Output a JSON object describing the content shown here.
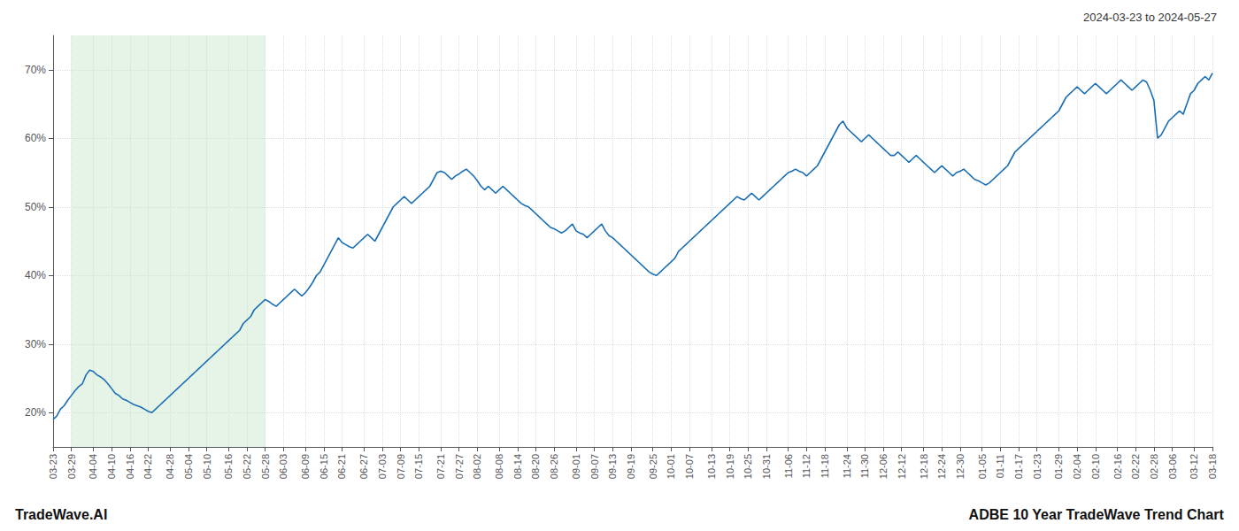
{
  "chart_data": {
    "type": "line",
    "title": "ADBE 10 Year TradeWave Trend Chart",
    "subtitle": "2024-03-23 to 2024-05-27",
    "annotations": [
      "TradeWave.AI"
    ],
    "color": "#1a6eb5",
    "grid": true,
    "shaded_range": {
      "start": "03-29",
      "end": "05-28",
      "color": "#c8e6c9"
    },
    "ylim": [
      15,
      75
    ],
    "yticks": [
      {
        "value": 20,
        "label": "20%"
      },
      {
        "value": 30,
        "label": "30%"
      },
      {
        "value": 40,
        "label": "40%"
      },
      {
        "value": 50,
        "label": "50%"
      },
      {
        "value": 60,
        "label": "60%"
      },
      {
        "value": 70,
        "label": "70%"
      }
    ],
    "categories": [
      "03-23",
      null,
      null,
      null,
      null,
      "03-29",
      null,
      null,
      null,
      null,
      null,
      "04-04",
      null,
      null,
      null,
      null,
      "04-10",
      null,
      null,
      null,
      null,
      "04-16",
      null,
      null,
      null,
      null,
      "04-22",
      null,
      null,
      null,
      null,
      null,
      "04-28",
      null,
      null,
      null,
      null,
      "05-04",
      null,
      null,
      null,
      null,
      "05-10",
      null,
      null,
      null,
      null,
      null,
      "05-16",
      null,
      null,
      null,
      null,
      "05-22",
      null,
      null,
      null,
      null,
      "05-28",
      null,
      null,
      null,
      null,
      "06-03",
      null,
      null,
      null,
      null,
      null,
      "06-09",
      null,
      null,
      null,
      null,
      "06-15",
      null,
      null,
      null,
      null,
      "06-21",
      null,
      null,
      null,
      null,
      null,
      "06-27",
      null,
      null,
      null,
      null,
      "07-03",
      null,
      null,
      null,
      null,
      "07-09",
      null,
      null,
      null,
      null,
      "07-15",
      null,
      null,
      null,
      null,
      null,
      "07-21",
      null,
      null,
      null,
      null,
      "07-27",
      null,
      null,
      null,
      null,
      "08-02",
      null,
      null,
      null,
      null,
      null,
      "08-08",
      null,
      null,
      null,
      null,
      "08-14",
      null,
      null,
      null,
      null,
      "08-20",
      null,
      null,
      null,
      null,
      "08-26",
      null,
      null,
      null,
      null,
      null,
      "09-01",
      null,
      null,
      null,
      null,
      "09-07",
      null,
      null,
      null,
      null,
      "09-13",
      null,
      null,
      null,
      null,
      "09-19",
      null,
      null,
      null,
      null,
      null,
      "09-25",
      null,
      null,
      null,
      null,
      "10-01",
      null,
      null,
      null,
      null,
      "10-07",
      null,
      null,
      null,
      null,
      null,
      "10-13",
      null,
      null,
      null,
      null,
      "10-19",
      null,
      null,
      null,
      null,
      "10-25",
      null,
      null,
      null,
      null,
      "10-31",
      null,
      null,
      null,
      null,
      null,
      "11-06",
      null,
      null,
      null,
      null,
      "11-12",
      null,
      null,
      null,
      null,
      "11-18",
      null,
      null,
      null,
      null,
      null,
      "11-24",
      null,
      null,
      null,
      null,
      "11-30",
      null,
      null,
      null,
      null,
      "12-06",
      null,
      null,
      null,
      null,
      "12-12",
      null,
      null,
      null,
      null,
      null,
      "12-18",
      null,
      null,
      null,
      null,
      "12-24",
      null,
      null,
      null,
      null,
      "12-30",
      null,
      null,
      null,
      null,
      null,
      "01-05",
      null,
      null,
      null,
      null,
      "01-11",
      null,
      null,
      null,
      null,
      "01-17",
      null,
      null,
      null,
      null,
      "01-23",
      null,
      null,
      null,
      null,
      null,
      "01-29",
      null,
      null,
      null,
      null,
      "02-04",
      null,
      null,
      null,
      null,
      "02-10",
      null,
      null,
      null,
      null,
      null,
      "02-16",
      null,
      null,
      null,
      null,
      "02-22",
      null,
      null,
      null,
      null,
      "02-28",
      null,
      null,
      null,
      null,
      "03-06",
      null,
      null,
      null,
      null,
      null,
      "03-12",
      null,
      null,
      null,
      null,
      "03-18"
    ],
    "values": [
      19.0,
      19.5,
      20.5,
      21.0,
      21.8,
      22.5,
      23.2,
      23.8,
      24.2,
      25.5,
      26.2,
      26.0,
      25.5,
      25.2,
      24.8,
      24.2,
      23.5,
      22.8,
      22.5,
      22.0,
      21.8,
      21.5,
      21.2,
      21.0,
      20.8,
      20.5,
      20.2,
      20.0,
      20.5,
      21.0,
      21.5,
      22.0,
      22.5,
      23.0,
      23.5,
      24.0,
      24.5,
      25.0,
      25.5,
      26.0,
      26.5,
      27.0,
      27.5,
      28.0,
      28.5,
      29.0,
      29.5,
      30.0,
      30.5,
      31.0,
      31.5,
      32.0,
      33.0,
      33.5,
      34.0,
      35.0,
      35.5,
      36.0,
      36.5,
      36.2,
      35.8,
      35.5,
      36.0,
      36.5,
      37.0,
      37.5,
      38.0,
      37.5,
      37.0,
      37.5,
      38.2,
      39.0,
      40.0,
      40.5,
      41.5,
      42.5,
      43.5,
      44.5,
      45.5,
      44.8,
      44.5,
      44.2,
      44.0,
      44.5,
      45.0,
      45.5,
      46.0,
      45.5,
      45.0,
      46.0,
      47.0,
      48.0,
      49.0,
      50.0,
      50.5,
      51.0,
      51.5,
      51.0,
      50.5,
      51.0,
      51.5,
      52.0,
      52.5,
      53.0,
      54.0,
      55.0,
      55.2,
      55.0,
      54.5,
      54.0,
      54.5,
      54.8,
      55.2,
      55.5,
      55.0,
      54.5,
      53.8,
      53.0,
      52.5,
      53.0,
      52.5,
      52.0,
      52.5,
      53.0,
      52.5,
      52.0,
      51.5,
      51.0,
      50.5,
      50.2,
      50.0,
      49.5,
      49.0,
      48.5,
      48.0,
      47.5,
      47.0,
      46.8,
      46.5,
      46.2,
      46.5,
      47.0,
      47.5,
      46.5,
      46.2,
      46.0,
      45.5,
      46.0,
      46.5,
      47.0,
      47.5,
      46.5,
      45.8,
      45.5,
      45.0,
      44.5,
      44.0,
      43.5,
      43.0,
      42.5,
      42.0,
      41.5,
      41.0,
      40.5,
      40.2,
      40.0,
      40.5,
      41.0,
      41.5,
      42.0,
      42.5,
      43.5,
      44.0,
      44.5,
      45.0,
      45.5,
      46.0,
      46.5,
      47.0,
      47.5,
      48.0,
      48.5,
      49.0,
      49.5,
      50.0,
      50.5,
      51.0,
      51.5,
      51.2,
      51.0,
      51.5,
      52.0,
      51.5,
      51.0,
      51.5,
      52.0,
      52.5,
      53.0,
      53.5,
      54.0,
      54.5,
      55.0,
      55.2,
      55.5,
      55.2,
      55.0,
      54.5,
      55.0,
      55.5,
      56.0,
      57.0,
      58.0,
      59.0,
      60.0,
      61.0,
      62.0,
      62.5,
      61.5,
      61.0,
      60.5,
      60.0,
      59.5,
      60.0,
      60.5,
      60.0,
      59.5,
      59.0,
      58.5,
      58.0,
      57.5,
      57.5,
      58.0,
      57.5,
      57.0,
      56.5,
      57.0,
      57.5,
      57.0,
      56.5,
      56.0,
      55.5,
      55.0,
      55.5,
      56.0,
      55.5,
      55.0,
      54.5,
      55.0,
      55.2,
      55.5,
      55.0,
      54.5,
      54.0,
      53.8,
      53.5,
      53.2,
      53.5,
      54.0,
      54.5,
      55.0,
      55.5,
      56.0,
      57.0,
      58.0,
      58.5,
      59.0,
      59.5,
      60.0,
      60.5,
      61.0,
      61.5,
      62.0,
      62.5,
      63.0,
      63.5,
      64.0,
      65.0,
      66.0,
      66.5,
      67.0,
      67.5,
      67.0,
      66.5,
      67.0,
      67.5,
      68.0,
      67.5,
      67.0,
      66.5,
      67.0,
      67.5,
      68.0,
      68.5,
      68.0,
      67.5,
      67.0,
      67.5,
      68.0,
      68.5,
      68.2,
      67.0,
      65.5,
      60.0,
      60.5,
      61.5,
      62.5,
      63.0,
      63.5,
      64.0,
      63.5,
      65.0,
      66.5,
      67.0,
      68.0,
      68.5,
      69.0,
      68.5,
      69.5
    ]
  }
}
